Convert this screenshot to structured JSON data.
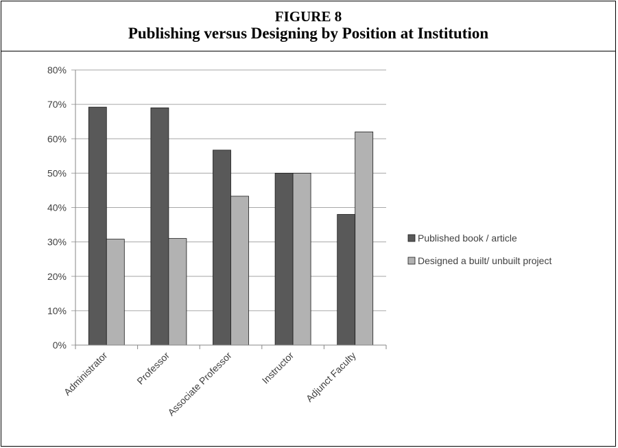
{
  "figure": {
    "number": "FIGURE 8",
    "title": "Publishing versus Designing by Position at Institution"
  },
  "chart_data": {
    "type": "bar",
    "categories": [
      "Administrator",
      "Professor",
      "Associate Professor",
      "Instructor",
      "Adjunct Faculty"
    ],
    "series": [
      {
        "name": "Published book / article",
        "color": "#595959",
        "values": [
          69.2,
          69.0,
          56.7,
          50.0,
          38.0
        ]
      },
      {
        "name": "Designed a built/ unbuilt project",
        "color": "#b2b2b2",
        "values": [
          30.8,
          31.0,
          43.3,
          50.0,
          62.0
        ]
      }
    ],
    "ylim": [
      0,
      80
    ],
    "yticks": [
      "0%",
      "10%",
      "20%",
      "30%",
      "40%",
      "50%",
      "60%",
      "70%",
      "80%"
    ],
    "grid": true,
    "legend_position": "right"
  }
}
